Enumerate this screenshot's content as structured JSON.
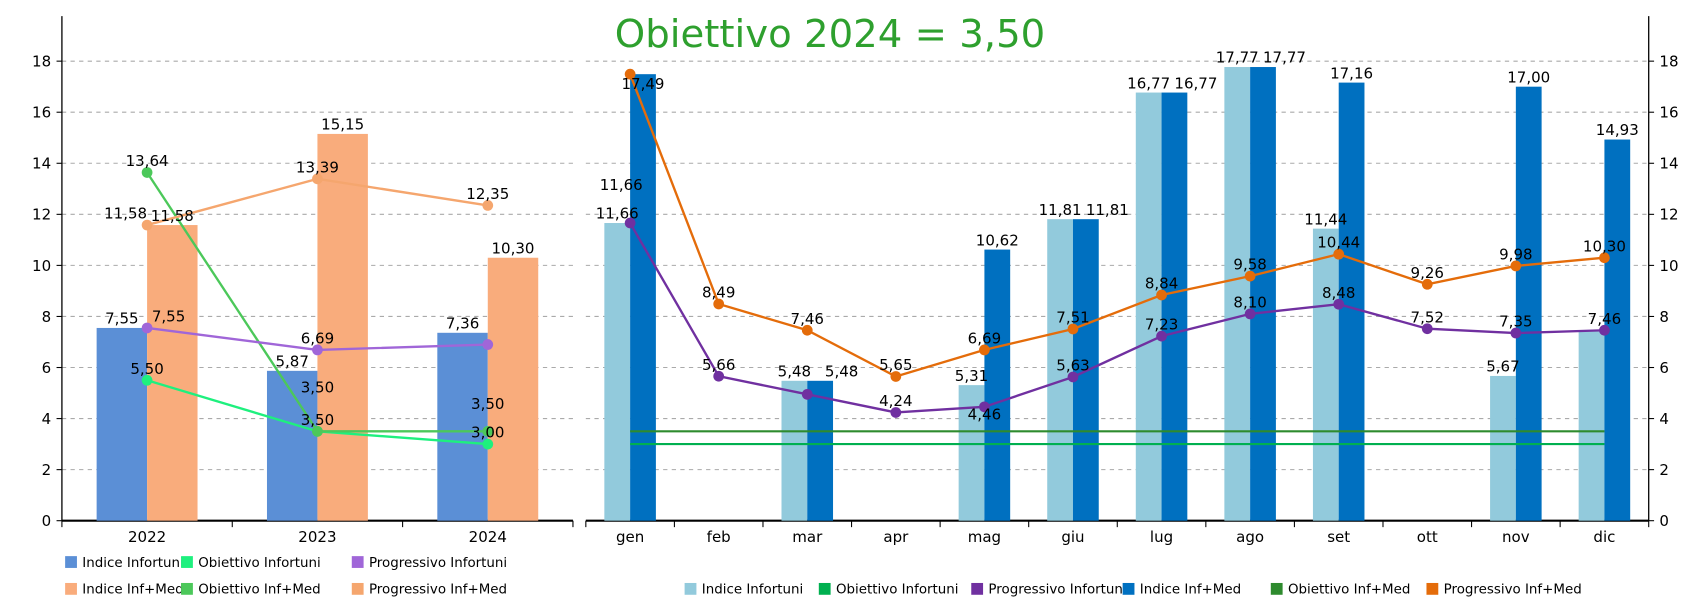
{
  "title": "Obiettivo 2024 = 3,50",
  "title_color": "#2EA02E",
  "chart_data": [
    {
      "type": "bar",
      "categories": [
        "2022",
        "2023",
        "2024"
      ],
      "ylim": [
        0,
        19.8
      ],
      "yticks": [
        "0",
        "2",
        "4",
        "6",
        "8",
        "10",
        "12",
        "14",
        "16",
        "18"
      ],
      "grid": true,
      "legend_position": "bottom",
      "series": [
        {
          "name": "Indice Infortuni",
          "kind": "bar",
          "color": "#5B8FD6",
          "values": [
            7.55,
            5.87,
            7.36
          ],
          "labels": [
            "7,55",
            "5,87",
            "7,36"
          ]
        },
        {
          "name": "Indice Inf+Med",
          "kind": "bar",
          "color": "#F9AC7C",
          "values": [
            11.58,
            15.15,
            10.3
          ],
          "labels": [
            "11,58",
            "15,15",
            "10,30"
          ]
        },
        {
          "name": "Obiettivo Infortuni",
          "kind": "line",
          "color": "#1EF07E",
          "values": [
            5.5,
            3.5,
            3.0
          ],
          "labels": [
            "5,50",
            "3,50",
            "3,00"
          ]
        },
        {
          "name": "Obiettivo Inf+Med",
          "kind": "line",
          "color": "#4CC85A",
          "values": [
            13.64,
            3.5,
            3.5
          ],
          "labels": [
            "13,64",
            "3,50",
            "3,50"
          ]
        },
        {
          "name": "Progressivo Infortuni",
          "kind": "line",
          "color": "#A066D8",
          "values": [
            7.55,
            6.69,
            6.9
          ],
          "labels": [
            "7,55",
            "6,69",
            null
          ]
        },
        {
          "name": "Progressivo Inf+Med",
          "kind": "line",
          "color": "#F5A66E",
          "values": [
            11.58,
            13.39,
            12.35
          ],
          "labels": [
            "11,58",
            "13,39",
            "12,35"
          ]
        }
      ],
      "legend_order": [
        0,
        2,
        4,
        1,
        3,
        5
      ]
    },
    {
      "type": "bar",
      "categories": [
        "gen",
        "feb",
        "mar",
        "apr",
        "mag",
        "giu",
        "lug",
        "ago",
        "set",
        "ott",
        "nov",
        "dic"
      ],
      "ylim": [
        0,
        19.8
      ],
      "yticks": [
        "0",
        "2",
        "4",
        "6",
        "8",
        "10",
        "12",
        "14",
        "16",
        "18"
      ],
      "grid": true,
      "legend_position": "bottom",
      "series": [
        {
          "name": "Indice Infortuni",
          "kind": "bar",
          "color": "#92CADC",
          "values": [
            11.66,
            null,
            5.48,
            null,
            5.31,
            11.81,
            16.77,
            17.77,
            11.44,
            null,
            5.67,
            7.46
          ],
          "labels": [
            "11,66",
            null,
            "5,48",
            null,
            "5,31",
            "11,81",
            "16,77",
            "17,77",
            "11,44",
            null,
            "5,67",
            null
          ]
        },
        {
          "name": "Obiettivo Infortuni",
          "kind": "flat",
          "color": "#00B050",
          "values": [
            3,
            3,
            3,
            3,
            3,
            3,
            3,
            3,
            3,
            3,
            3,
            3
          ],
          "labels": []
        },
        {
          "name": "Progressivo Infortuni",
          "kind": "line",
          "color": "#7030A0",
          "values": [
            11.66,
            5.66,
            4.95,
            4.24,
            4.46,
            5.63,
            7.23,
            8.1,
            8.48,
            7.52,
            7.35,
            7.46
          ],
          "labels": [
            null,
            "5,66",
            null,
            "4,24",
            "4,46",
            "5,63",
            "7,23",
            "8,10",
            "8,48",
            "7,52",
            "7,35",
            "7,46"
          ]
        },
        {
          "name": "Indice Inf+Med",
          "kind": "bar",
          "color": "#0070C0",
          "values": [
            17.49,
            null,
            5.48,
            null,
            10.62,
            11.81,
            16.77,
            17.77,
            17.16,
            null,
            17.0,
            14.93
          ],
          "labels": [
            "17,49",
            null,
            "5,48",
            null,
            "10,62",
            "11,81",
            "16,77",
            "17,77",
            "17,16",
            null,
            "17,00",
            "14,93"
          ]
        },
        {
          "name": "Obiettivo Inf+Med",
          "kind": "flat",
          "color": "#2E8B2E",
          "values": [
            3.5,
            3.5,
            3.5,
            3.5,
            3.5,
            3.5,
            3.5,
            3.5,
            3.5,
            3.5,
            3.5,
            3.5
          ],
          "labels": []
        },
        {
          "name": "Progressivo Inf+Med",
          "kind": "line",
          "color": "#E46C0A",
          "values": [
            17.49,
            8.49,
            7.46,
            5.65,
            6.69,
            7.51,
            8.84,
            9.58,
            10.44,
            9.26,
            9.98,
            10.3
          ],
          "labels": [
            null,
            "8,49",
            "7,46",
            "5,65",
            "6,69",
            "7,51",
            "8,84",
            "9,58",
            "10,44",
            "9,26",
            "9,98",
            "10,30"
          ]
        }
      ],
      "extra_labels": [
        "11,66"
      ],
      "legend_order": [
        0,
        1,
        2,
        3,
        4,
        5
      ]
    }
  ]
}
